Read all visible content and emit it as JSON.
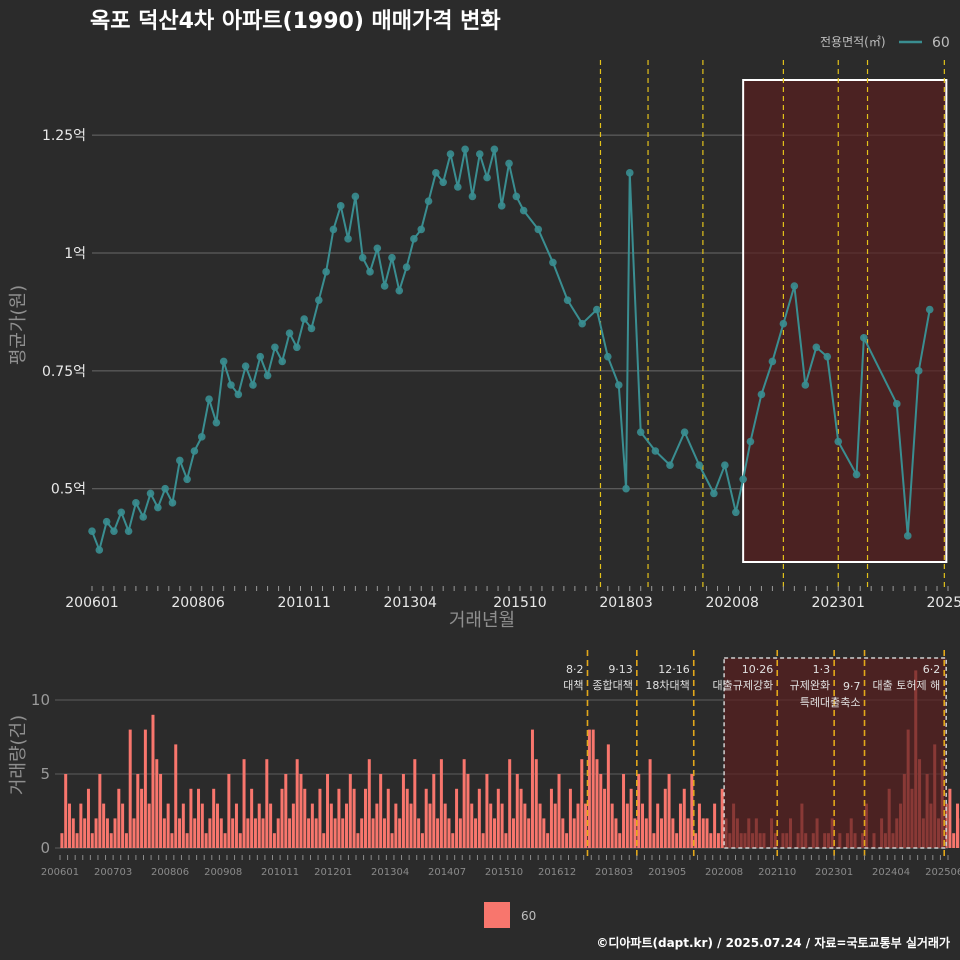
{
  "title": "옥포 덕산4차 아파트(1990) 매매가격 변화",
  "legend_top": {
    "title": "전용면적(㎡)",
    "label": "60",
    "color": "#3a8e91"
  },
  "legend_bottom": {
    "label": "60",
    "color": "#f8766d"
  },
  "footer": "©디아파트(dapt.kr) / 2025.07.24 / 자료=국토교통부 실거래가",
  "chart_data": [
    {
      "type": "line",
      "title": "옥포 덕산4차 아파트(1990) 매매가격 변화",
      "xlabel": "거래년월",
      "ylabel": "평균가(원)",
      "x_ticks": [
        "200601",
        "200806",
        "201011",
        "201304",
        "201510",
        "201803",
        "202008",
        "202301",
        "202506"
      ],
      "x_tick_labels": [
        "200601",
        "200806",
        "201011",
        "201304",
        "201510",
        "201803",
        "202008",
        "202301",
        "2025"
      ],
      "y_ticks": [
        0.5,
        0.75,
        1.0,
        1.25
      ],
      "y_tick_labels": [
        "0.5억",
        "0.75억",
        "1억",
        "1.25억"
      ],
      "ylim": [
        0.3,
        1.42
      ],
      "series": [
        {
          "name": "60",
          "color": "#3a8e91",
          "points": [
            [
              "2006-01",
              0.41
            ],
            [
              "2006-03",
              0.37
            ],
            [
              "2006-05",
              0.43
            ],
            [
              "2006-07",
              0.41
            ],
            [
              "2006-09",
              0.45
            ],
            [
              "2006-11",
              0.41
            ],
            [
              "2007-01",
              0.47
            ],
            [
              "2007-03",
              0.44
            ],
            [
              "2007-05",
              0.49
            ],
            [
              "2007-07",
              0.46
            ],
            [
              "2007-09",
              0.5
            ],
            [
              "2007-11",
              0.47
            ],
            [
              "2008-01",
              0.56
            ],
            [
              "2008-03",
              0.52
            ],
            [
              "2008-05",
              0.58
            ],
            [
              "2008-07",
              0.61
            ],
            [
              "2008-09",
              0.69
            ],
            [
              "2008-11",
              0.64
            ],
            [
              "2009-01",
              0.77
            ],
            [
              "2009-03",
              0.72
            ],
            [
              "2009-05",
              0.7
            ],
            [
              "2009-07",
              0.76
            ],
            [
              "2009-09",
              0.72
            ],
            [
              "2009-11",
              0.78
            ],
            [
              "2010-01",
              0.74
            ],
            [
              "2010-03",
              0.8
            ],
            [
              "2010-05",
              0.77
            ],
            [
              "2010-07",
              0.83
            ],
            [
              "2010-09",
              0.8
            ],
            [
              "2010-11",
              0.86
            ],
            [
              "2011-01",
              0.84
            ],
            [
              "2011-03",
              0.9
            ],
            [
              "2011-05",
              0.96
            ],
            [
              "2011-07",
              1.05
            ],
            [
              "2011-09",
              1.1
            ],
            [
              "2011-11",
              1.03
            ],
            [
              "2012-01",
              1.12
            ],
            [
              "2012-03",
              0.99
            ],
            [
              "2012-05",
              0.96
            ],
            [
              "2012-07",
              1.01
            ],
            [
              "2012-09",
              0.93
            ],
            [
              "2012-11",
              0.99
            ],
            [
              "2013-01",
              0.92
            ],
            [
              "2013-03",
              0.97
            ],
            [
              "2013-05",
              1.03
            ],
            [
              "2013-07",
              1.05
            ],
            [
              "2013-09",
              1.11
            ],
            [
              "2013-11",
              1.17
            ],
            [
              "2014-01",
              1.15
            ],
            [
              "2014-03",
              1.21
            ],
            [
              "2014-05",
              1.14
            ],
            [
              "2014-07",
              1.22
            ],
            [
              "2014-09",
              1.12
            ],
            [
              "2014-11",
              1.21
            ],
            [
              "2015-01",
              1.16
            ],
            [
              "2015-03",
              1.22
            ],
            [
              "2015-05",
              1.1
            ],
            [
              "2015-07",
              1.19
            ],
            [
              "2015-09",
              1.12
            ],
            [
              "2015-11",
              1.09
            ],
            [
              "2016-03",
              1.05
            ],
            [
              "2016-07",
              0.98
            ],
            [
              "2016-11",
              0.9
            ],
            [
              "2017-03",
              0.85
            ],
            [
              "2017-07",
              0.88
            ],
            [
              "2017-10",
              0.78
            ],
            [
              "2018-01",
              0.72
            ],
            [
              "2018-03",
              0.5
            ],
            [
              "2018-04",
              1.17
            ],
            [
              "2018-07",
              0.62
            ],
            [
              "2018-11",
              0.58
            ],
            [
              "2019-03",
              0.55
            ],
            [
              "2019-07",
              0.62
            ],
            [
              "2019-11",
              0.55
            ],
            [
              "2020-03",
              0.49
            ],
            [
              "2020-06",
              0.55
            ],
            [
              "2020-09",
              0.45
            ],
            [
              "2020-11",
              0.52
            ],
            [
              "2021-01",
              0.6
            ],
            [
              "2021-04",
              0.7
            ],
            [
              "2021-07",
              0.77
            ],
            [
              "2021-10",
              0.85
            ],
            [
              "2022-01",
              0.93
            ],
            [
              "2022-04",
              0.72
            ],
            [
              "2022-07",
              0.8
            ],
            [
              "2022-10",
              0.78
            ],
            [
              "2023-01",
              0.6
            ],
            [
              "2023-06",
              0.53
            ],
            [
              "2023-08",
              0.82
            ],
            [
              "2024-05",
              0.68
            ],
            [
              "2024-08",
              0.4
            ],
            [
              "2024-11",
              0.75
            ],
            [
              "2025-02",
              0.88
            ]
          ]
        }
      ]
    },
    {
      "type": "bar",
      "ylabel": "거래량(건)",
      "y_ticks": [
        0,
        5,
        10
      ],
      "ylim": [
        0,
        11
      ],
      "x_tick_labels": [
        "200601",
        "200703",
        "200806",
        "200908",
        "201011",
        "201201",
        "201304",
        "201407",
        "201510",
        "201612",
        "201803",
        "201905",
        "202008",
        "202110",
        "202301",
        "202404",
        "202506"
      ],
      "series": [
        {
          "name": "60",
          "color": "#f8766d",
          "values": [
            1,
            5,
            3,
            2,
            1,
            3,
            2,
            4,
            1,
            2,
            5,
            3,
            2,
            1,
            2,
            4,
            3,
            1,
            8,
            2,
            5,
            4,
            8,
            3,
            9,
            6,
            5,
            2,
            3,
            1,
            7,
            2,
            3,
            1,
            4,
            2,
            4,
            3,
            1,
            2,
            4,
            3,
            2,
            1,
            5,
            2,
            3,
            1,
            6,
            2,
            4,
            2,
            3,
            2,
            6,
            3,
            1,
            2,
            4,
            5,
            2,
            3,
            6,
            5,
            4,
            2,
            3,
            2,
            4,
            1,
            5,
            3,
            2,
            4,
            2,
            3,
            5,
            4,
            1,
            2,
            4,
            6,
            2,
            3,
            5,
            2,
            4,
            1,
            3,
            2,
            5,
            4,
            3,
            6,
            2,
            1,
            4,
            3,
            5,
            2,
            6,
            3,
            2,
            1,
            4,
            2,
            6,
            5,
            3,
            2,
            4,
            1,
            5,
            3,
            2,
            4,
            3,
            1,
            6,
            2,
            5,
            4,
            3,
            2,
            8,
            6,
            3,
            2,
            1,
            4,
            3,
            5,
            2,
            1,
            4,
            2,
            3,
            6,
            3,
            8,
            8,
            6,
            5,
            4,
            7,
            3,
            2,
            1,
            5,
            3,
            4,
            2,
            5,
            3,
            2,
            6,
            1,
            3,
            2,
            4,
            5,
            2,
            1,
            3,
            4,
            2,
            5,
            1,
            3,
            2,
            2,
            1,
            3,
            1,
            4,
            2,
            1,
            3,
            2,
            1,
            1,
            2,
            1,
            2,
            1,
            1,
            0,
            2,
            1,
            0,
            1,
            1,
            2,
            0,
            1,
            3,
            1,
            0,
            1,
            2,
            0,
            1,
            1,
            2,
            0,
            1,
            0,
            1,
            2,
            1,
            0,
            1,
            3,
            0,
            1,
            0,
            2,
            1,
            4,
            1,
            2,
            3,
            5,
            8,
            4,
            12,
            6,
            2,
            5,
            3,
            7,
            2,
            6,
            3,
            4,
            1,
            3,
            2,
            6,
            2,
            1,
            3,
            2,
            1,
            2,
            1,
            3,
            1,
            0,
            2,
            1,
            0,
            1,
            0,
            2,
            0,
            1,
            0,
            1,
            0,
            2,
            0,
            0,
            1,
            0,
            0,
            1,
            0,
            0,
            1,
            0,
            0,
            1,
            0,
            2,
            1,
            0,
            1
          ]
        }
      ],
      "annotations": [
        {
          "date": "2017-08",
          "label": "8·2 대책"
        },
        {
          "date": "2018-09",
          "label": "9·13 종합대책"
        },
        {
          "date": "2019-12",
          "label": "12·16 18차대책"
        },
        {
          "date": "2021-10",
          "label": "10·26 대출규제강화"
        },
        {
          "date": "2023-01",
          "label": "1·3 규제완화"
        },
        {
          "date": "2023-09",
          "label": "9·7 특례대출축소"
        },
        {
          "date": "2025-06",
          "label": "6·2 대출 토허제 해"
        }
      ]
    }
  ]
}
